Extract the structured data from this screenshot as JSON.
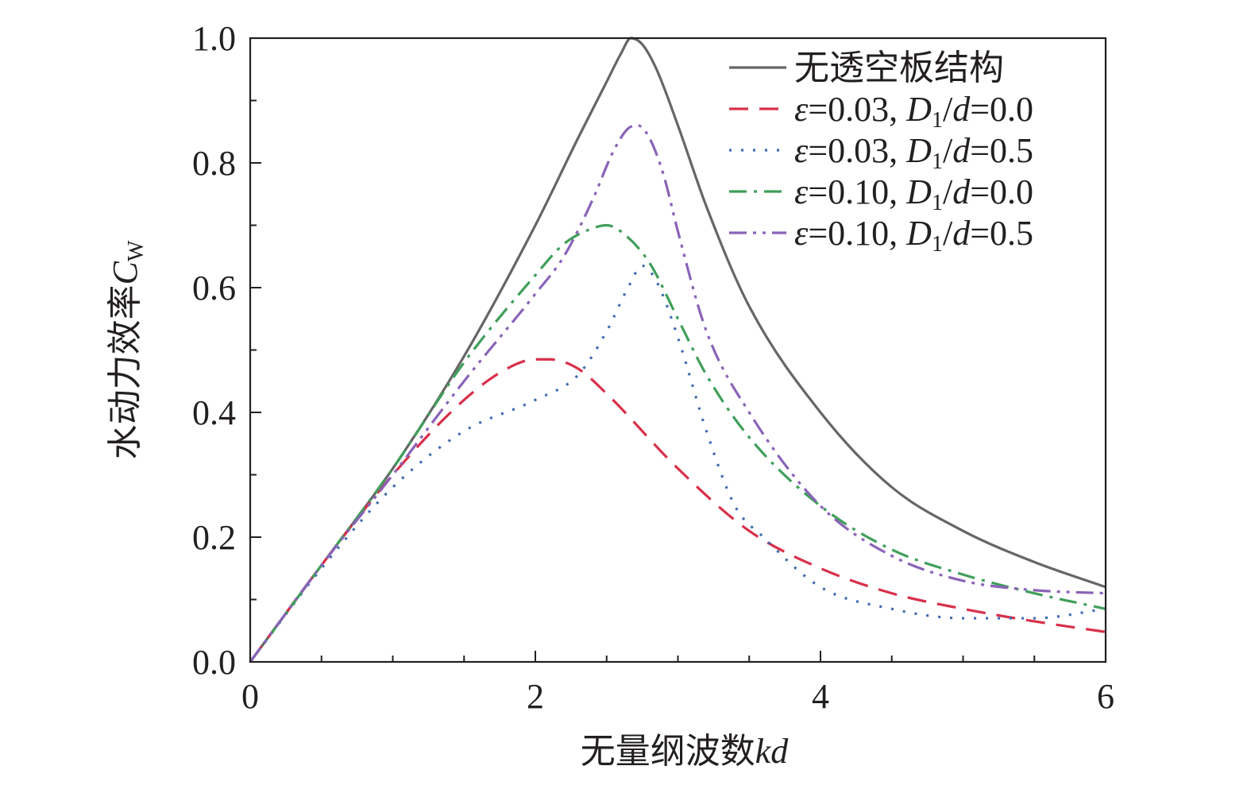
{
  "chart_data": {
    "type": "line",
    "xlabel": {
      "text": "无量纲波数",
      "symbol": "kd"
    },
    "ylabel": {
      "text": "水动力效率",
      "symbol": "C",
      "subscript": "W"
    },
    "xlim": [
      0,
      6
    ],
    "ylim": [
      0,
      1.0
    ],
    "xticks": [
      0,
      2,
      4,
      6
    ],
    "xtick_labels": [
      "0",
      "2",
      "4",
      "6"
    ],
    "yticks": [
      0,
      0.2,
      0.4,
      0.6,
      0.8,
      1.0
    ],
    "ytick_labels": [
      "0.0",
      "0.2",
      "0.4",
      "0.6",
      "0.8",
      "1.0"
    ],
    "grid": false,
    "legend_position": "top-right",
    "series": [
      {
        "name": "无透空板结构",
        "legend": {
          "eps": "",
          "eps_val": "",
          "D": "",
          "sub": "",
          "d": "",
          "ratio": ""
        },
        "color": "#666666",
        "dash": "solid",
        "x": [
          0,
          0.5,
          1.0,
          1.5,
          2.0,
          2.3,
          2.5,
          2.6,
          2.67,
          2.75,
          2.85,
          3.0,
          3.2,
          3.5,
          4.0,
          4.5,
          5.0,
          5.5,
          6.0
        ],
        "y": [
          0,
          0.155,
          0.31,
          0.49,
          0.7,
          0.84,
          0.93,
          0.975,
          1.0,
          0.99,
          0.95,
          0.86,
          0.73,
          0.57,
          0.4,
          0.28,
          0.21,
          0.16,
          0.12
        ]
      },
      {
        "name": "ε=0.03, D1/d=0.0",
        "legend": {
          "eps": "ε",
          "eps_val": "=0.03, ",
          "D": "D",
          "sub": "1",
          "d": "d",
          "ratio": "=0.0"
        },
        "color": "#d8304a",
        "dash": "dashed",
        "x": [
          0,
          0.5,
          1.0,
          1.5,
          1.8,
          2.0,
          2.1,
          2.3,
          2.5,
          3.0,
          3.5,
          4.0,
          4.5,
          5.0,
          5.5,
          6.0
        ],
        "y": [
          0,
          0.155,
          0.3,
          0.42,
          0.47,
          0.485,
          0.485,
          0.47,
          0.43,
          0.31,
          0.21,
          0.15,
          0.11,
          0.085,
          0.065,
          0.048
        ]
      },
      {
        "name": "ε=0.03, D1/d=0.5",
        "legend": {
          "eps": "ε",
          "eps_val": "=0.03, ",
          "D": "D",
          "sub": "1",
          "d": "d",
          "ratio": "=0.5"
        },
        "color": "#3f6ab0",
        "dash": "dotted",
        "x": [
          0,
          0.5,
          1.0,
          1.5,
          2.0,
          2.3,
          2.5,
          2.65,
          2.75,
          2.85,
          3.0,
          3.2,
          3.4,
          3.6,
          4.0,
          4.5,
          5.0,
          5.5,
          6.0
        ],
        "y": [
          0,
          0.15,
          0.28,
          0.37,
          0.42,
          0.46,
          0.53,
          0.6,
          0.635,
          0.61,
          0.52,
          0.37,
          0.25,
          0.2,
          0.12,
          0.085,
          0.07,
          0.07,
          0.085
        ]
      },
      {
        "name": "ε=0.10, D1/d=0.0",
        "legend": {
          "eps": "ε",
          "eps_val": "=0.10, ",
          "D": "D",
          "sub": "1",
          "d": "d",
          "ratio": "=0.0"
        },
        "color": "#3f9f5a",
        "dash": "dashdot",
        "x": [
          0,
          0.5,
          1.0,
          1.5,
          2.0,
          2.2,
          2.4,
          2.5,
          2.6,
          2.8,
          3.0,
          3.2,
          3.5,
          4.0,
          4.5,
          5.0,
          5.5,
          6.0
        ],
        "y": [
          0,
          0.155,
          0.31,
          0.48,
          0.62,
          0.67,
          0.695,
          0.7,
          0.69,
          0.64,
          0.55,
          0.46,
          0.36,
          0.25,
          0.18,
          0.14,
          0.11,
          0.085
        ]
      },
      {
        "name": "ε=0.10, D1/d=0.5",
        "legend": {
          "eps": "ε",
          "eps_val": "=0.10, ",
          "D": "D",
          "sub": "1",
          "d": "d",
          "ratio": "=0.5"
        },
        "color": "#8a63b8",
        "dash": "dashdotdot",
        "x": [
          0,
          0.5,
          1.0,
          1.5,
          2.0,
          2.2,
          2.4,
          2.55,
          2.65,
          2.72,
          2.8,
          2.9,
          3.0,
          3.2,
          3.5,
          4.0,
          4.5,
          5.0,
          5.5,
          6.0
        ],
        "y": [
          0,
          0.155,
          0.3,
          0.45,
          0.59,
          0.65,
          0.74,
          0.82,
          0.855,
          0.86,
          0.84,
          0.78,
          0.69,
          0.53,
          0.4,
          0.25,
          0.17,
          0.13,
          0.115,
          0.11
        ]
      }
    ]
  }
}
